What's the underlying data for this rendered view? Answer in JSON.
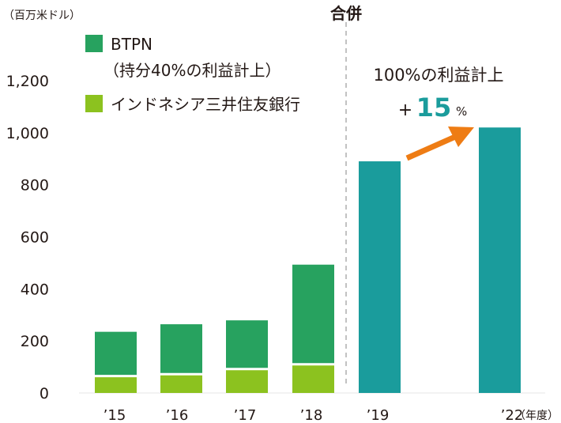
{
  "chart_data": {
    "type": "bar",
    "unit_label": "（百万米ドル）",
    "ylim": [
      0,
      1200
    ],
    "yticks": [
      "0",
      "200",
      "400",
      "600",
      "800",
      "1,000",
      "1,200"
    ],
    "categories": [
      "’15",
      "’16",
      "’17",
      "’18",
      "’19",
      "’22"
    ],
    "x_suffix": "（年度）",
    "series": [
      {
        "name": "インドネシア三井住友銀行",
        "color": "#8cc21f",
        "values": [
          65,
          72,
          92,
          110,
          null,
          null
        ]
      },
      {
        "name": "BTPN\n（持分40%の利益計上）",
        "color": "#27a25f",
        "values": [
          170,
          192,
          187,
          383,
          null,
          null
        ]
      },
      {
        "name": "100%の利益計上",
        "color": "#1a9c9c",
        "values": [
          null,
          null,
          null,
          null,
          890,
          1020
        ]
      }
    ],
    "merger_label": "合併",
    "full_label": "100%の利益計上",
    "growth": {
      "sign": "+",
      "value": "15",
      "unit": "%"
    },
    "arrow_color": "#ee7c14",
    "grid": false
  }
}
